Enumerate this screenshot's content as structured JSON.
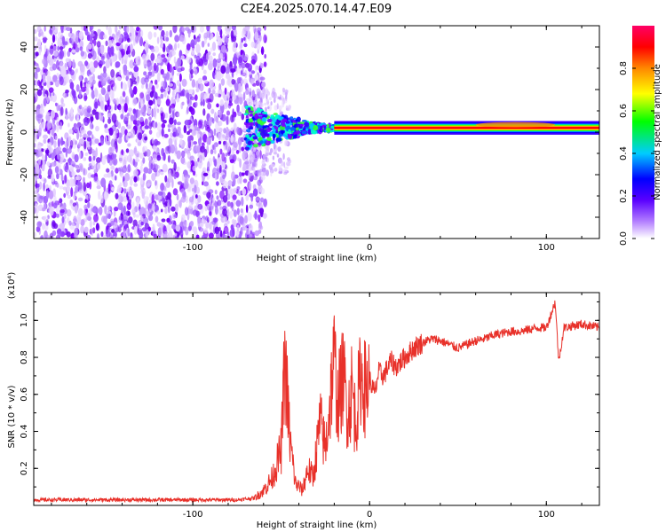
{
  "title": "C2E4.2025.070.14.47.E09",
  "chart_data": [
    {
      "type": "heatmap",
      "xlabel": "Height of straight line (km)",
      "ylabel": "Frequency (Hz)",
      "xlim": [
        -190,
        130
      ],
      "ylim": [
        -50,
        50
      ],
      "xticks": [
        -100,
        0,
        100
      ],
      "xtick_labels": [
        "-100",
        "0",
        "100"
      ],
      "yticks": [
        -40,
        -20,
        0,
        20,
        40
      ],
      "ytick_labels": [
        "-40",
        "-20",
        "0",
        "20",
        "40"
      ],
      "colorbar": {
        "label": "Normalized spectral amplitude",
        "range": [
          0,
          1
        ],
        "ticks": [
          0.0,
          0.2,
          0.4,
          0.6,
          0.8
        ],
        "tick_labels": [
          "0.0",
          "0.2",
          "0.4",
          "0.6",
          "0.8"
        ],
        "colors": [
          "#ffffff",
          "#7b00ff",
          "#0000ff",
          "#00ccff",
          "#00ff00",
          "#ffff00",
          "#ff8800",
          "#ff0000",
          "#ff0066"
        ]
      },
      "regions": [
        {
          "x": [
            -190,
            -65
          ],
          "y": [
            -50,
            50
          ],
          "amplitude": [
            0.0,
            0.25
          ],
          "description": "noise"
        },
        {
          "x": [
            -70,
            -20
          ],
          "y": [
            -8,
            10
          ],
          "amplitude": [
            0.2,
            0.6
          ]
        },
        {
          "x": [
            -20,
            130
          ],
          "y": [
            1,
            3
          ],
          "amplitude": [
            0.8,
            0.95
          ]
        }
      ],
      "line_center_hz": 2
    },
    {
      "type": "line",
      "xlabel": "Height of straight line (km)",
      "ylabel": "SNR (10 * v/v)",
      "yscale_label": "(x10⁴)",
      "xlim": [
        -190,
        130
      ],
      "ylim": [
        0,
        1.15
      ],
      "xticks": [
        -100,
        0,
        100
      ],
      "xtick_labels": [
        "-100",
        "0",
        "100"
      ],
      "yticks": [
        0.2,
        0.4,
        0.6,
        0.8,
        1.0
      ],
      "ytick_labels": [
        "0.2",
        "0.4",
        "0.6",
        "0.8",
        "1.0"
      ],
      "color": "#e8312a",
      "x": [
        -190,
        -170,
        -150,
        -130,
        -110,
        -90,
        -75,
        -65,
        -60,
        -55,
        -50,
        -48,
        -45,
        -42,
        -38,
        -35,
        -32,
        -28,
        -25,
        -22,
        -20,
        -18,
        -15,
        -12,
        -10,
        -8,
        -5,
        -2,
        0,
        3,
        5,
        8,
        12,
        15,
        20,
        25,
        30,
        35,
        40,
        45,
        50,
        55,
        60,
        65,
        70,
        75,
        80,
        85,
        90,
        95,
        100,
        105,
        107,
        110,
        115,
        120,
        125,
        130
      ],
      "y": [
        0.03,
        0.03,
        0.03,
        0.03,
        0.03,
        0.03,
        0.03,
        0.04,
        0.08,
        0.15,
        0.3,
        0.78,
        0.35,
        0.12,
        0.08,
        0.2,
        0.15,
        0.45,
        0.3,
        0.6,
        0.82,
        0.55,
        0.7,
        0.5,
        0.65,
        0.45,
        0.7,
        0.62,
        0.68,
        0.6,
        0.72,
        0.7,
        0.78,
        0.75,
        0.8,
        0.85,
        0.88,
        0.9,
        0.89,
        0.87,
        0.85,
        0.87,
        0.89,
        0.9,
        0.92,
        0.93,
        0.94,
        0.94,
        0.95,
        0.96,
        0.96,
        1.1,
        0.78,
        0.96,
        0.97,
        0.98,
        0.97,
        0.96
      ]
    }
  ]
}
